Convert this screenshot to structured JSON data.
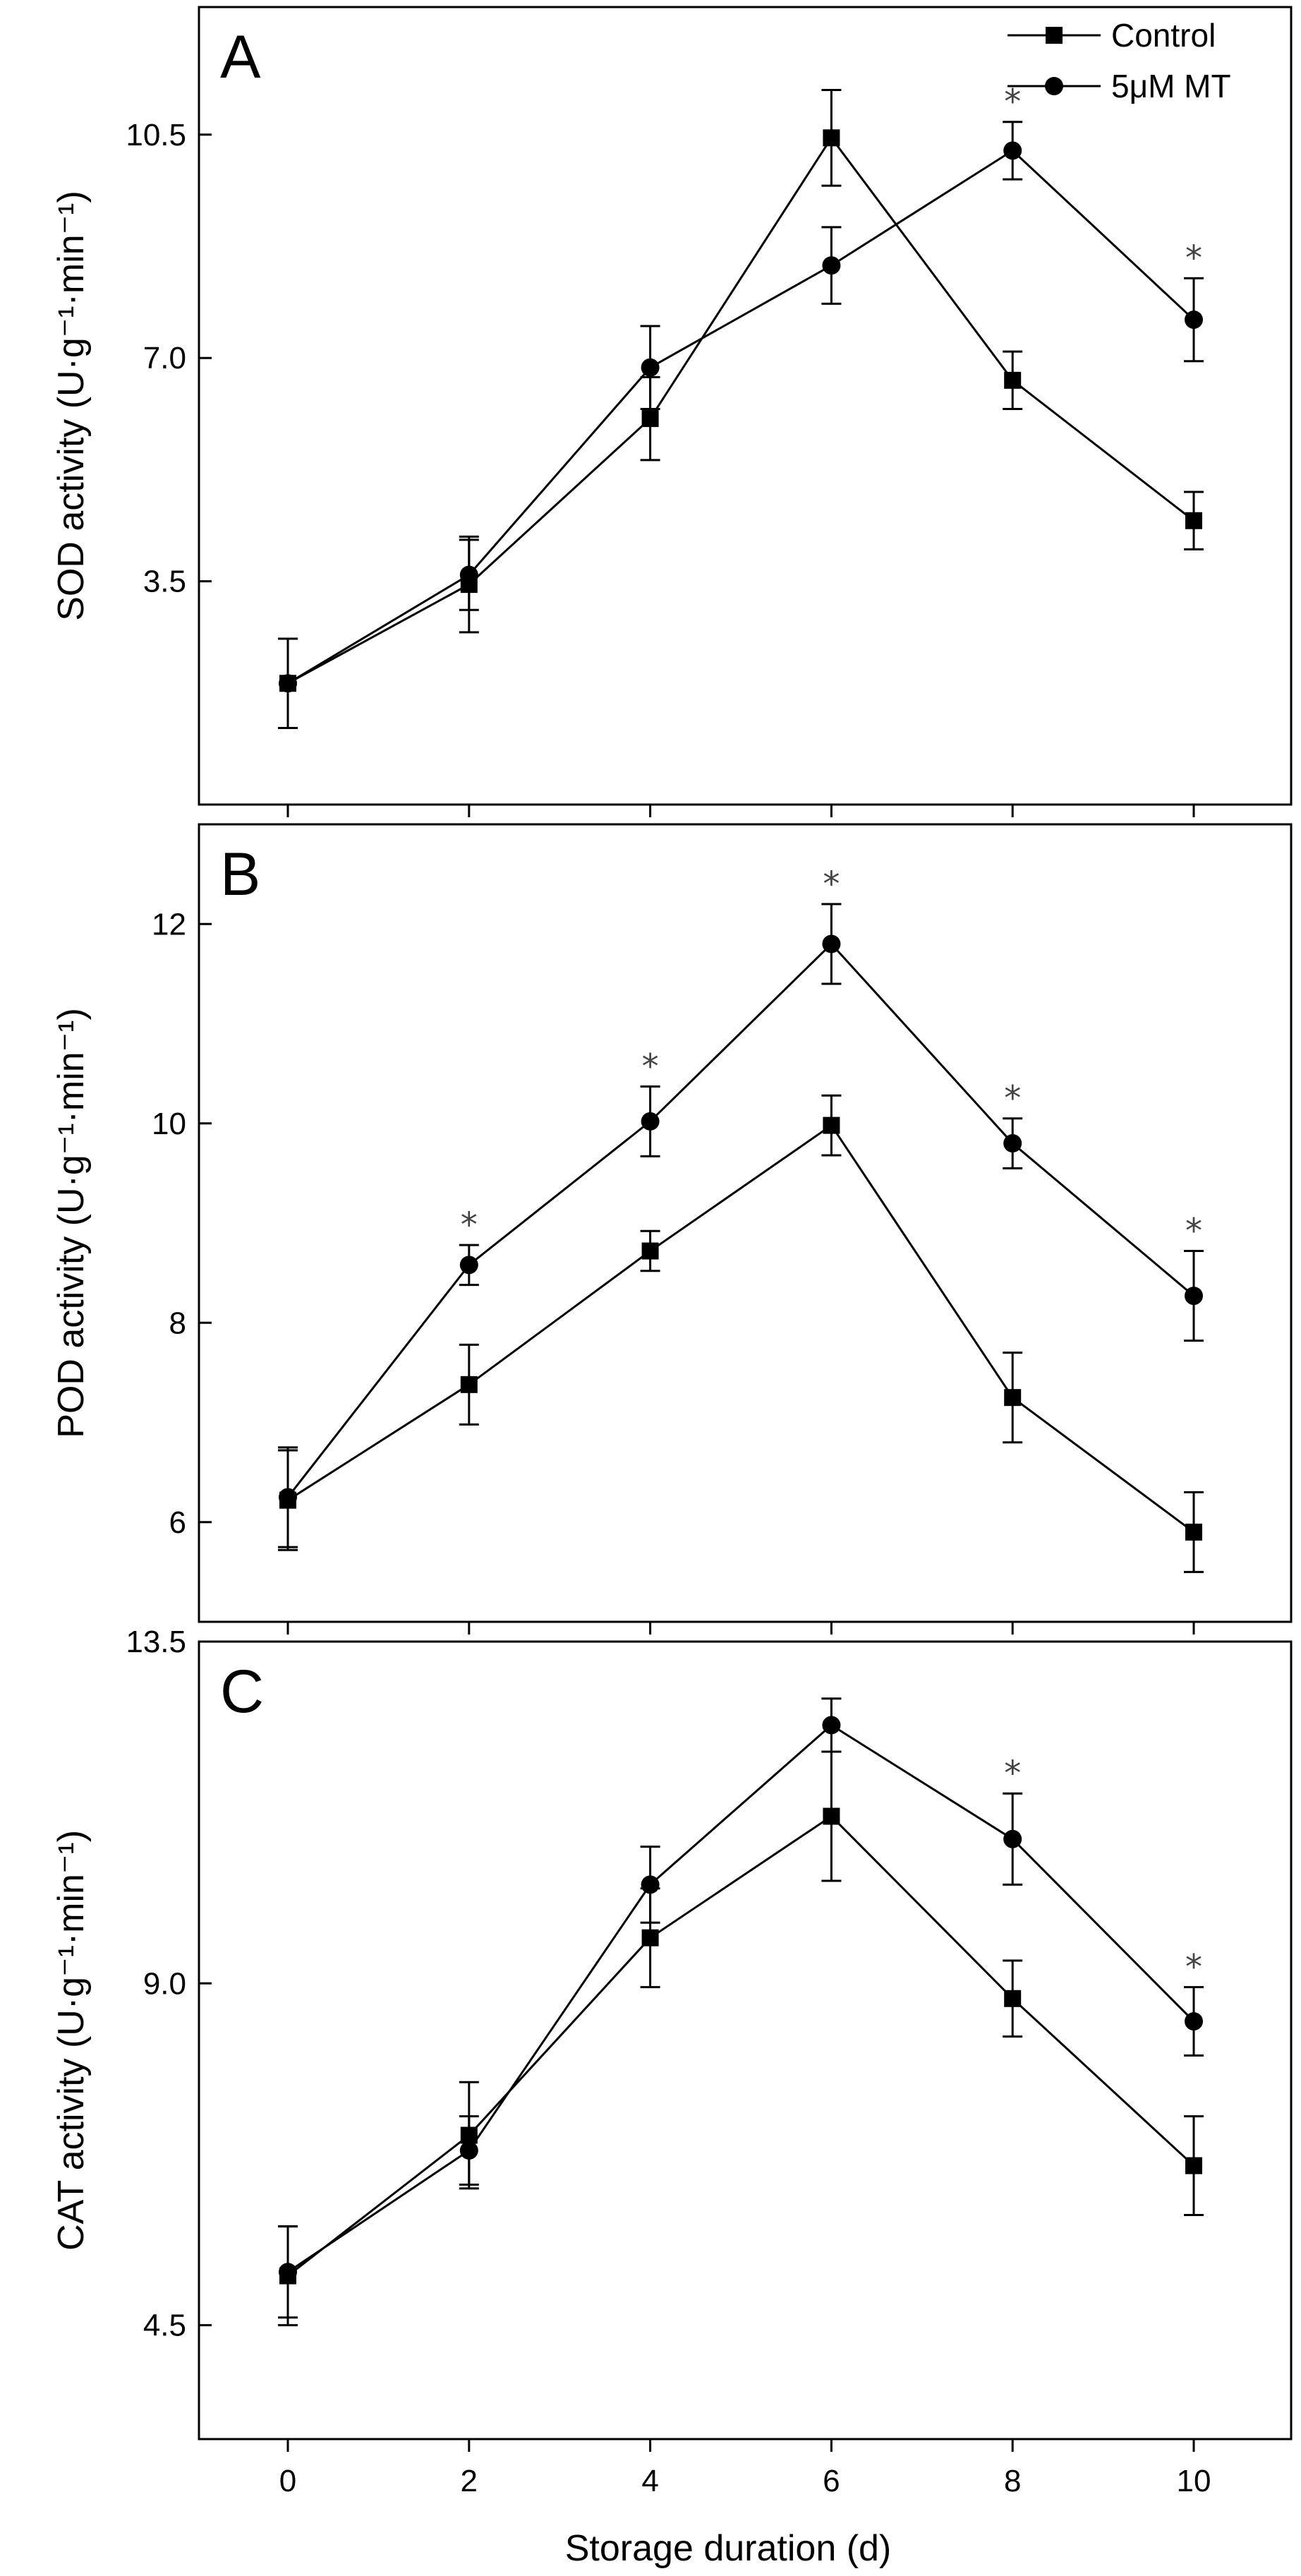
{
  "figure": {
    "xlabel": "Storage duration (d)"
  },
  "legend": {
    "items": [
      {
        "name": "Control",
        "marker": "square"
      },
      {
        "name": "5μM MT",
        "marker": "circle"
      }
    ]
  },
  "chart_data": [
    {
      "type": "line",
      "panel_label": "A",
      "title": "",
      "xlabel": "",
      "ylabel": "SOD activity (U·g⁻¹·min⁻¹)",
      "x": [
        0,
        2,
        4,
        6,
        8,
        10
      ],
      "x_ticks": [
        "0",
        "2",
        "4",
        "6",
        "8",
        "10"
      ],
      "xlim": [
        -1,
        11
      ],
      "ylim": [
        0,
        12.5
      ],
      "y_ticks": [
        3.5,
        7.0,
        10.5
      ],
      "y_tick_labels": [
        "3.5",
        "7.0",
        "10.5"
      ],
      "series": [
        {
          "name": "Control",
          "values": [
            1.9,
            3.45,
            6.05,
            10.45,
            6.65,
            4.45
          ],
          "errors": [
            0.7,
            0.75,
            0.65,
            0.75,
            0.45,
            0.45
          ]
        },
        {
          "name": "5μM MT",
          "values": [
            1.9,
            3.6,
            6.85,
            8.45,
            10.25,
            7.6
          ],
          "errors": [
            0.7,
            0.55,
            0.65,
            0.6,
            0.45,
            0.65
          ]
        }
      ],
      "significance": [
        {
          "x": 8,
          "label": "*"
        },
        {
          "x": 10,
          "label": "*"
        }
      ]
    },
    {
      "type": "line",
      "panel_label": "B",
      "title": "",
      "xlabel": "",
      "ylabel": "POD activity (U·g⁻¹·min⁻¹)",
      "x": [
        0,
        2,
        4,
        6,
        8,
        10
      ],
      "x_ticks": [
        "0",
        "2",
        "4",
        "6",
        "8",
        "10"
      ],
      "xlim": [
        -1,
        11
      ],
      "ylim": [
        5.0,
        13.0
      ],
      "y_ticks": [
        6,
        8,
        10,
        12
      ],
      "y_tick_labels": [
        "6",
        "8",
        "10",
        "12"
      ],
      "series": [
        {
          "name": "Control",
          "values": [
            6.22,
            7.38,
            8.72,
            9.98,
            7.25,
            5.9
          ],
          "errors": [
            0.5,
            0.4,
            0.2,
            0.3,
            0.45,
            0.4
          ]
        },
        {
          "name": "5μM MT",
          "values": [
            6.25,
            8.58,
            10.02,
            11.8,
            9.8,
            8.27
          ],
          "errors": [
            0.5,
            0.2,
            0.35,
            0.4,
            0.25,
            0.45
          ]
        }
      ],
      "significance": [
        {
          "x": 2,
          "label": "*"
        },
        {
          "x": 4,
          "label": "*"
        },
        {
          "x": 6,
          "label": "*"
        },
        {
          "x": 8,
          "label": "*"
        },
        {
          "x": 10,
          "label": "*"
        }
      ]
    },
    {
      "type": "line",
      "panel_label": "C",
      "title": "",
      "xlabel": "Storage duration (d)",
      "ylabel": "CAT activity (U·g⁻¹·min⁻¹)",
      "x": [
        0,
        2,
        4,
        6,
        8,
        10
      ],
      "x_ticks": [
        "0",
        "2",
        "4",
        "6",
        "8",
        "10"
      ],
      "xlim": [
        -1,
        11
      ],
      "ylim": [
        3.0,
        13.5
      ],
      "y_ticks": [
        4.5,
        9.0,
        13.5
      ],
      "y_tick_labels": [
        "4.5",
        "9.0",
        "13.5"
      ],
      "series": [
        {
          "name": "Control",
          "values": [
            5.15,
            7.0,
            9.6,
            11.2,
            8.8,
            6.6
          ],
          "errors": [
            0.65,
            0.7,
            0.65,
            0.85,
            0.5,
            0.65
          ]
        },
        {
          "name": "5μM MT",
          "values": [
            5.2,
            6.8,
            10.3,
            12.4,
            10.9,
            8.5
          ],
          "errors": [
            0.6,
            0.45,
            0.5,
            0.35,
            0.6,
            0.45
          ]
        }
      ],
      "significance": [
        {
          "x": 8,
          "label": "*"
        },
        {
          "x": 10,
          "label": "*"
        }
      ]
    }
  ]
}
